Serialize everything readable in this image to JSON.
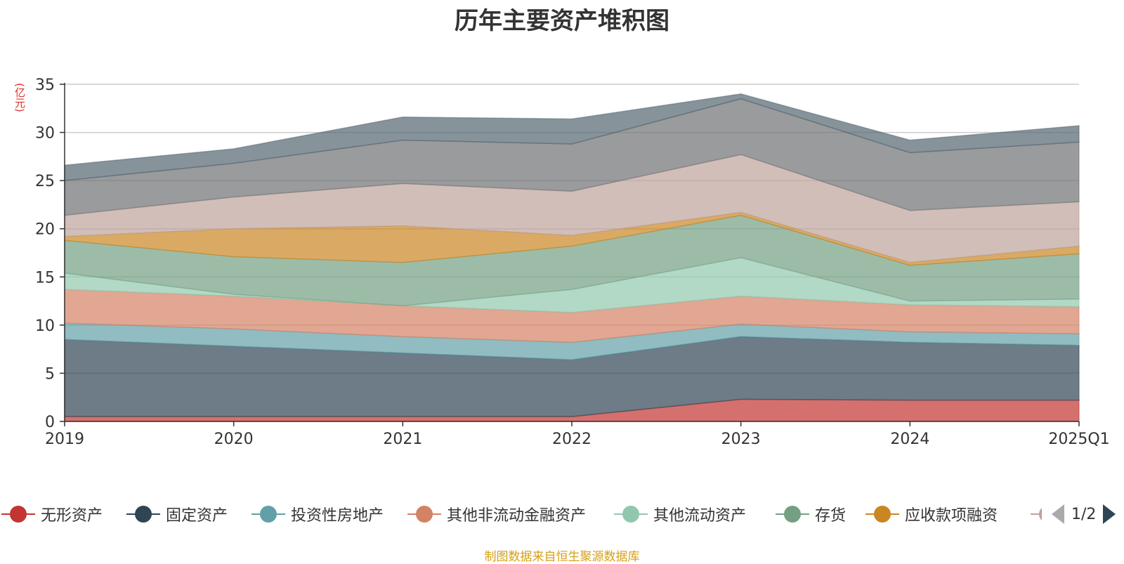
{
  "chart_data": {
    "type": "area",
    "title": "历年主要资产堆积图",
    "ylabel": "(亿元)",
    "xlabel": "",
    "stacked": true,
    "categories": [
      "2019",
      "2020",
      "2021",
      "2022",
      "2023",
      "2024",
      "2025Q1"
    ],
    "ylim": [
      0,
      35
    ],
    "yticks": [
      "0",
      "5",
      "10",
      "15",
      "20",
      "25",
      "30",
      "35"
    ],
    "grid": true,
    "legend_position": "bottom",
    "series": [
      {
        "name": "无形资产",
        "color": "#c23531",
        "values": [
          0.5,
          0.5,
          0.5,
          0.5,
          2.3,
          2.2,
          2.2
        ]
      },
      {
        "name": "固定资产",
        "color": "#2f4554",
        "values": [
          8.0,
          7.3,
          6.6,
          5.9,
          6.5,
          6.0,
          5.7
        ]
      },
      {
        "name": "投资性房地产",
        "color": "#61a0a8",
        "values": [
          1.7,
          1.8,
          1.7,
          1.8,
          1.3,
          1.1,
          1.2
        ]
      },
      {
        "name": "其他非流动金融资产",
        "color": "#d48265",
        "values": [
          3.5,
          3.4,
          3.2,
          3.1,
          2.9,
          2.8,
          2.8
        ]
      },
      {
        "name": "其他流动资产",
        "color": "#91c7ae",
        "values": [
          1.7,
          0.2,
          0.0,
          2.4,
          4.0,
          0.4,
          0.8
        ]
      },
      {
        "name": "存货",
        "color": "#749f83",
        "values": [
          3.4,
          3.9,
          4.5,
          4.5,
          4.4,
          3.7,
          4.7
        ]
      },
      {
        "name": "应收款项融资",
        "color": "#ca8622",
        "values": [
          0.4,
          2.9,
          3.8,
          1.1,
          0.3,
          0.3,
          0.8
        ]
      },
      {
        "name": "",
        "color": "#bda29a",
        "values": [
          2.2,
          3.3,
          4.4,
          4.6,
          6.0,
          5.4,
          4.6
        ]
      },
      {
        "name": "",
        "color": "#6e7074",
        "values": [
          3.6,
          3.5,
          4.5,
          4.9,
          5.8,
          6.0,
          6.2
        ]
      },
      {
        "name": "",
        "color": "#546570",
        "values": [
          1.6,
          1.5,
          2.4,
          2.6,
          0.5,
          1.3,
          1.7
        ]
      }
    ]
  },
  "pager": {
    "text": "1/2"
  },
  "footer": {
    "source": "制图数据来自恒生聚源数据库"
  }
}
